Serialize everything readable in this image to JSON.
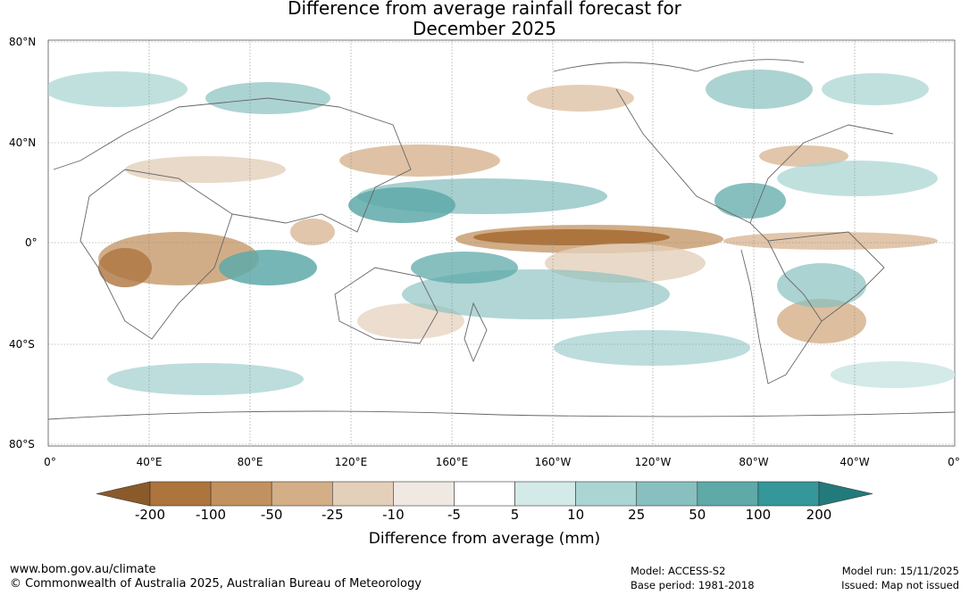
{
  "title": {
    "line1": "Difference from average rainfall forecast for",
    "line2": "December 2025"
  },
  "map": {
    "lat_labels": [
      "80°N",
      "40°N",
      "0°",
      "40°S",
      "80°S"
    ],
    "lon_labels": [
      "0°",
      "40°E",
      "80°E",
      "120°E",
      "160°E",
      "160°W",
      "120°W",
      "80°W",
      "40°W",
      "0°"
    ]
  },
  "colorbar": {
    "ticks": [
      "-200",
      "-100",
      "-50",
      "-25",
      "-10",
      "-5",
      "5",
      "10",
      "25",
      "50",
      "100",
      "200"
    ],
    "colors": [
      "#8a5a2b",
      "#ad743e",
      "#c1925f",
      "#d4ae87",
      "#e4cfba",
      "#f0e9e3",
      "#ffffff",
      "#d3eae8",
      "#abd5d3",
      "#87c0bf",
      "#5fa9a9",
      "#35979a",
      "#237a7b"
    ],
    "title": "Difference from average (mm)"
  },
  "footer": {
    "url": "www.bom.gov.au/climate",
    "copyright": "© Commonwealth of Australia 2025, Australian Bureau of Meteorology",
    "model": "Model: ACCESS-S2",
    "base_period": "Base period: 1981-2018",
    "model_run": "Model run: 15/11/2025",
    "issued": "Issued: Map not issued"
  }
}
